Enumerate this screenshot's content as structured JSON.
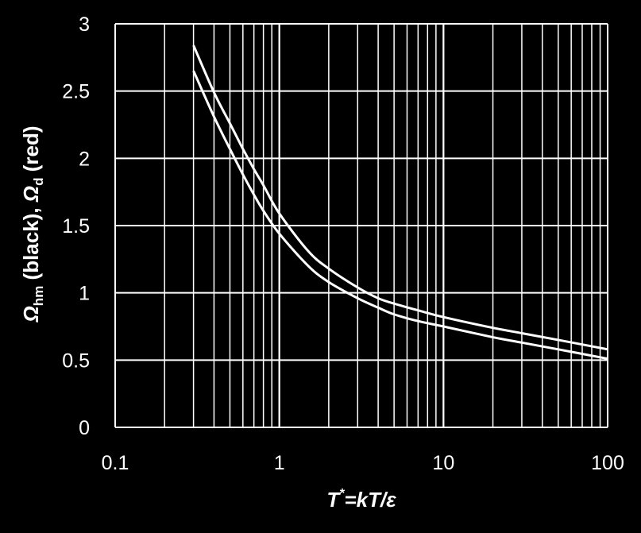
{
  "chart_data": {
    "type": "line",
    "xscale": "log",
    "xlim": [
      0.1,
      100
    ],
    "ylim": [
      0,
      3
    ],
    "grid": true,
    "xlabel": {
      "base": "T",
      "sup": "*",
      "rest": "=kT/ε"
    },
    "ylabel": {
      "sym1": "Ω",
      "sub1": "hm",
      "text1": " (black), ",
      "sym2": "Ω",
      "sub2": "d",
      "text2": " (red)"
    },
    "x_tick_labels": [
      "0.1",
      "1",
      "10",
      "100"
    ],
    "y_tick_labels": [
      "0",
      "0.5",
      "1",
      "1.5",
      "2",
      "2.5",
      "3"
    ],
    "series": [
      {
        "color": "#ffffff",
        "x": [
          0.3,
          0.4,
          0.5,
          0.6,
          0.7,
          0.8,
          1,
          1.5,
          2,
          3,
          4,
          5,
          7,
          10,
          20,
          30,
          50,
          100
        ],
        "y": [
          2.84,
          2.49,
          2.26,
          2.07,
          1.92,
          1.8,
          1.59,
          1.31,
          1.18,
          1.04,
          0.96,
          0.92,
          0.87,
          0.82,
          0.74,
          0.7,
          0.65,
          0.58
        ]
      },
      {
        "color": "#ffffff",
        "x": [
          0.3,
          0.4,
          0.5,
          0.6,
          0.7,
          0.8,
          1,
          1.5,
          2,
          3,
          4,
          5,
          7,
          10,
          20,
          30,
          50,
          100
        ],
        "y": [
          2.65,
          2.31,
          2.07,
          1.88,
          1.73,
          1.61,
          1.44,
          1.2,
          1.08,
          0.96,
          0.89,
          0.84,
          0.79,
          0.75,
          0.67,
          0.63,
          0.58,
          0.51
        ]
      }
    ]
  }
}
